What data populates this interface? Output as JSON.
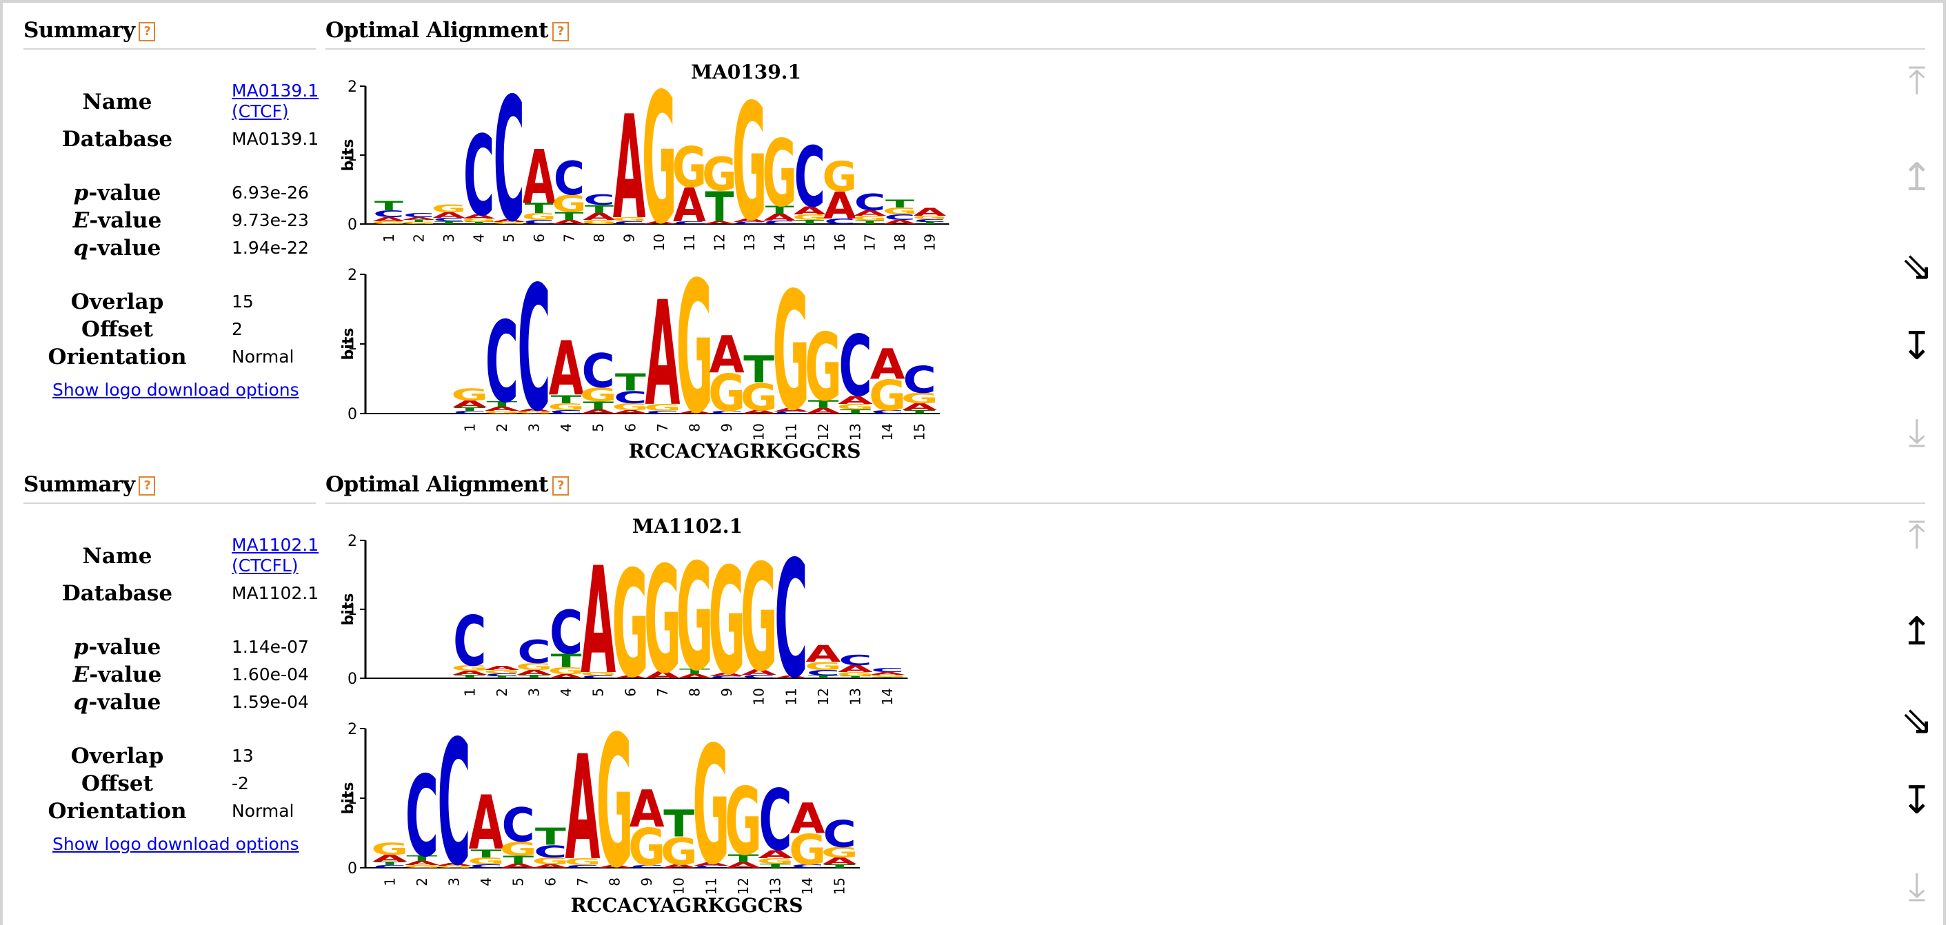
{
  "results": [
    {
      "summary_title": "Summary",
      "alignment_title": "Optimal Alignment",
      "help_glyph": "?",
      "labels": {
        "name": "Name",
        "database": "Database",
        "p_letter": "p",
        "e_letter": "E",
        "q_letter": "q",
        "value_suffix": "-value",
        "overlap": "Overlap",
        "offset": "Offset",
        "orientation": "Orientation"
      },
      "name_link_line1": "MA0139.1",
      "name_link_line2": "(CTCF)",
      "database": "MA0139.1",
      "p_value": "6.93e-26",
      "e_value": "9.73e-23",
      "q_value": "1.94e-22",
      "overlap": "15",
      "offset": "2",
      "orientation": "Normal",
      "download_link": "Show logo download options",
      "target_logo_title": "MA0139.1",
      "query_consensus": "RCCACYAGRKGGCRS",
      "axis_label": "bits",
      "ticks": [
        "0",
        "1",
        "2"
      ],
      "target_positions": [
        "1",
        "2",
        "3",
        "4",
        "5",
        "6",
        "7",
        "8",
        "9",
        "10",
        "11",
        "12",
        "13",
        "14",
        "15",
        "16",
        "17",
        "18",
        "19"
      ],
      "query_positions": [
        "1",
        "2",
        "3",
        "4",
        "5",
        "6",
        "7",
        "8",
        "9",
        "10",
        "11",
        "12",
        "13",
        "14",
        "15"
      ],
      "controls": {
        "move_top": "⤒",
        "move_up": "↥",
        "shift": "⇘",
        "swap": "↧",
        "move_bottom": "⤓",
        "states": [
          "off",
          "off",
          "on",
          "on",
          "off"
        ]
      }
    },
    {
      "summary_title": "Summary",
      "alignment_title": "Optimal Alignment",
      "help_glyph": "?",
      "labels": {
        "name": "Name",
        "database": "Database",
        "p_letter": "p",
        "e_letter": "E",
        "q_letter": "q",
        "value_suffix": "-value",
        "overlap": "Overlap",
        "offset": "Offset",
        "orientation": "Orientation"
      },
      "name_link_line1": "MA1102.1",
      "name_link_line2": "(CTCFL)",
      "database": "MA1102.1",
      "p_value": "1.14e-07",
      "e_value": "1.60e-04",
      "q_value": "1.59e-04",
      "overlap": "13",
      "offset": "-2",
      "orientation": "Normal",
      "download_link": "Show logo download options",
      "target_logo_title": "MA1102.1",
      "query_consensus": "RCCACYAGRKGGCRS",
      "axis_label": "bits",
      "ticks": [
        "0",
        "1",
        "2"
      ],
      "target_positions": [
        "1",
        "2",
        "3",
        "4",
        "5",
        "6",
        "7",
        "8",
        "9",
        "10",
        "11",
        "12",
        "13",
        "14"
      ],
      "query_positions": [
        "1",
        "2",
        "3",
        "4",
        "5",
        "6",
        "7",
        "8",
        "9",
        "10",
        "11",
        "12",
        "13",
        "14",
        "15"
      ],
      "controls": {
        "move_top": "⤒",
        "move_up": "↥",
        "shift": "⇘",
        "swap": "↧",
        "move_bottom": "⤓",
        "states": [
          "off",
          "on",
          "on",
          "on",
          "off"
        ]
      }
    }
  ],
  "colors": {
    "A": "#cc0000",
    "C": "#0000cc",
    "G": "#ffb300",
    "T": "#008000",
    "help": "#e0842e",
    "link": "#0000ee"
  },
  "logos": {
    "r0_target": [
      [
        [
          "T",
          0.14
        ],
        [
          "C",
          0.1
        ],
        [
          "A",
          0.06
        ],
        [
          "G",
          0.04
        ]
      ],
      [
        [
          "C",
          0.06
        ],
        [
          "A",
          0.04
        ],
        [
          "G",
          0.03
        ],
        [
          "T",
          0.03
        ]
      ],
      [
        [
          "G",
          0.12
        ],
        [
          "A",
          0.08
        ],
        [
          "C",
          0.05
        ],
        [
          "T",
          0.04
        ]
      ],
      [
        [
          "C",
          1.2
        ],
        [
          "A",
          0.06
        ],
        [
          "G",
          0.05
        ],
        [
          "T",
          0.03
        ]
      ],
      [
        [
          "C",
          1.85
        ],
        [
          "A",
          0.04
        ],
        [
          "G",
          0.03
        ]
      ],
      [
        [
          "A",
          0.8
        ],
        [
          "T",
          0.15
        ],
        [
          "G",
          0.1
        ],
        [
          "C",
          0.06
        ]
      ],
      [
        [
          "C",
          0.5
        ],
        [
          "G",
          0.25
        ],
        [
          "T",
          0.12
        ],
        [
          "A",
          0.06
        ]
      ],
      [
        [
          "C",
          0.15
        ],
        [
          "T",
          0.12
        ],
        [
          "A",
          0.1
        ],
        [
          "G",
          0.06
        ]
      ],
      [
        [
          "A",
          1.55
        ],
        [
          "G",
          0.06
        ],
        [
          "C",
          0.04
        ]
      ],
      [
        [
          "G",
          1.95
        ],
        [
          "A",
          0.04
        ]
      ],
      [
        [
          "G",
          0.6
        ],
        [
          "A",
          0.5
        ],
        [
          "C",
          0.04
        ]
      ],
      [
        [
          "G",
          0.5
        ],
        [
          "T",
          0.45
        ],
        [
          "A",
          0.04
        ]
      ],
      [
        [
          "G",
          1.75
        ],
        [
          "A",
          0.05
        ],
        [
          "C",
          0.03
        ]
      ],
      [
        [
          "G",
          1.0
        ],
        [
          "T",
          0.12
        ],
        [
          "A",
          0.1
        ],
        [
          "C",
          0.05
        ]
      ],
      [
        [
          "C",
          0.9
        ],
        [
          "A",
          0.12
        ],
        [
          "G",
          0.08
        ],
        [
          "T",
          0.06
        ]
      ],
      [
        [
          "G",
          0.45
        ],
        [
          "A",
          0.4
        ],
        [
          "C",
          0.08
        ]
      ],
      [
        [
          "C",
          0.25
        ],
        [
          "A",
          0.08
        ],
        [
          "G",
          0.07
        ],
        [
          "T",
          0.05
        ]
      ],
      [
        [
          "T",
          0.12
        ],
        [
          "G",
          0.1
        ],
        [
          "C",
          0.08
        ],
        [
          "A",
          0.06
        ]
      ],
      [
        [
          "A",
          0.12
        ],
        [
          "G",
          0.05
        ],
        [
          "C",
          0.04
        ],
        [
          "T",
          0.03
        ]
      ]
    ],
    "r0_query": [
      [
        [
          "G",
          0.18
        ],
        [
          "A",
          0.1
        ],
        [
          "T",
          0.05
        ],
        [
          "C",
          0.04
        ]
      ],
      [
        [
          "C",
          1.2
        ],
        [
          "T",
          0.08
        ],
        [
          "A",
          0.06
        ],
        [
          "G",
          0.04
        ]
      ],
      [
        [
          "C",
          1.85
        ],
        [
          "A",
          0.04
        ],
        [
          "G",
          0.03
        ]
      ],
      [
        [
          "A",
          0.8
        ],
        [
          "T",
          0.12
        ],
        [
          "G",
          0.1
        ],
        [
          "C",
          0.05
        ]
      ],
      [
        [
          "C",
          0.5
        ],
        [
          "G",
          0.2
        ],
        [
          "T",
          0.12
        ],
        [
          "A",
          0.06
        ]
      ],
      [
        [
          "T",
          0.25
        ],
        [
          "C",
          0.18
        ],
        [
          "G",
          0.1
        ],
        [
          "A",
          0.05
        ]
      ],
      [
        [
          "A",
          1.55
        ],
        [
          "G",
          0.1
        ],
        [
          "C",
          0.04
        ]
      ],
      [
        [
          "G",
          1.95
        ],
        [
          "A",
          0.04
        ]
      ],
      [
        [
          "G",
          0.55
        ],
        [
          "A",
          0.55
        ],
        [
          "C",
          0.04
        ]
      ],
      [
        [
          "G",
          0.4
        ],
        [
          "T",
          0.4
        ],
        [
          "A",
          0.05
        ]
      ],
      [
        [
          "G",
          1.75
        ],
        [
          "A",
          0.05
        ],
        [
          "C",
          0.03
        ]
      ],
      [
        [
          "G",
          1.0
        ],
        [
          "T",
          0.12
        ],
        [
          "A",
          0.08
        ]
      ],
      [
        [
          "C",
          0.9
        ],
        [
          "A",
          0.12
        ],
        [
          "G",
          0.08
        ],
        [
          "T",
          0.06
        ]
      ],
      [
        [
          "G",
          0.45
        ],
        [
          "A",
          0.45
        ],
        [
          "C",
          0.05
        ]
      ],
      [
        [
          "C",
          0.4
        ],
        [
          "G",
          0.15
        ],
        [
          "A",
          0.1
        ],
        [
          "T",
          0.05
        ]
      ]
    ],
    "r1_target": [
      [
        [
          "C",
          0.75
        ],
        [
          "G",
          0.08
        ],
        [
          "A",
          0.06
        ],
        [
          "T",
          0.05
        ]
      ],
      [
        [
          "A",
          0.06
        ],
        [
          "G",
          0.05
        ],
        [
          "C",
          0.04
        ],
        [
          "T",
          0.03
        ]
      ],
      [
        [
          "C",
          0.35
        ],
        [
          "G",
          0.1
        ],
        [
          "A",
          0.07
        ],
        [
          "T",
          0.05
        ]
      ],
      [
        [
          "C",
          0.65
        ],
        [
          "T",
          0.2
        ],
        [
          "G",
          0.1
        ],
        [
          "A",
          0.06
        ]
      ],
      [
        [
          "A",
          1.6
        ],
        [
          "G",
          0.05
        ],
        [
          "C",
          0.04
        ]
      ],
      [
        [
          "G",
          1.6
        ],
        [
          "A",
          0.04
        ]
      ],
      [
        [
          "G",
          1.6
        ],
        [
          "A",
          0.1
        ]
      ],
      [
        [
          "G",
          1.6
        ],
        [
          "T",
          0.08
        ],
        [
          "A",
          0.06
        ]
      ],
      [
        [
          "G",
          1.6
        ],
        [
          "A",
          0.05
        ],
        [
          "C",
          0.03
        ]
      ],
      [
        [
          "G",
          1.6
        ],
        [
          "A",
          0.08
        ],
        [
          "C",
          0.05
        ]
      ],
      [
        [
          "C",
          1.75
        ],
        [
          "A",
          0.04
        ]
      ],
      [
        [
          "A",
          0.25
        ],
        [
          "G",
          0.12
        ],
        [
          "C",
          0.08
        ],
        [
          "T",
          0.04
        ]
      ],
      [
        [
          "C",
          0.15
        ],
        [
          "A",
          0.1
        ],
        [
          "G",
          0.06
        ],
        [
          "T",
          0.03
        ]
      ],
      [
        [
          "C",
          0.06
        ],
        [
          "A",
          0.04
        ],
        [
          "G",
          0.03
        ],
        [
          "T",
          0.02
        ]
      ]
    ],
    "r1_query": [
      [
        [
          "G",
          0.18
        ],
        [
          "A",
          0.1
        ],
        [
          "T",
          0.05
        ],
        [
          "C",
          0.04
        ]
      ],
      [
        [
          "C",
          1.2
        ],
        [
          "T",
          0.08
        ],
        [
          "A",
          0.06
        ],
        [
          "G",
          0.04
        ]
      ],
      [
        [
          "C",
          1.85
        ],
        [
          "A",
          0.04
        ],
        [
          "G",
          0.03
        ]
      ],
      [
        [
          "A",
          0.8
        ],
        [
          "T",
          0.12
        ],
        [
          "G",
          0.1
        ],
        [
          "C",
          0.05
        ]
      ],
      [
        [
          "C",
          0.5
        ],
        [
          "G",
          0.2
        ],
        [
          "T",
          0.12
        ],
        [
          "A",
          0.06
        ]
      ],
      [
        [
          "T",
          0.25
        ],
        [
          "C",
          0.18
        ],
        [
          "G",
          0.1
        ],
        [
          "A",
          0.05
        ]
      ],
      [
        [
          "A",
          1.55
        ],
        [
          "G",
          0.1
        ],
        [
          "C",
          0.04
        ]
      ],
      [
        [
          "G",
          1.95
        ],
        [
          "A",
          0.04
        ]
      ],
      [
        [
          "G",
          0.55
        ],
        [
          "A",
          0.55
        ],
        [
          "C",
          0.04
        ]
      ],
      [
        [
          "G",
          0.4
        ],
        [
          "T",
          0.4
        ],
        [
          "A",
          0.05
        ]
      ],
      [
        [
          "G",
          1.75
        ],
        [
          "A",
          0.05
        ],
        [
          "C",
          0.03
        ]
      ],
      [
        [
          "G",
          1.0
        ],
        [
          "T",
          0.12
        ],
        [
          "A",
          0.08
        ]
      ],
      [
        [
          "C",
          0.9
        ],
        [
          "A",
          0.12
        ],
        [
          "G",
          0.08
        ],
        [
          "T",
          0.06
        ]
      ],
      [
        [
          "G",
          0.45
        ],
        [
          "A",
          0.45
        ],
        [
          "C",
          0.05
        ]
      ],
      [
        [
          "C",
          0.4
        ],
        [
          "G",
          0.15
        ],
        [
          "A",
          0.1
        ],
        [
          "T",
          0.05
        ]
      ]
    ]
  }
}
